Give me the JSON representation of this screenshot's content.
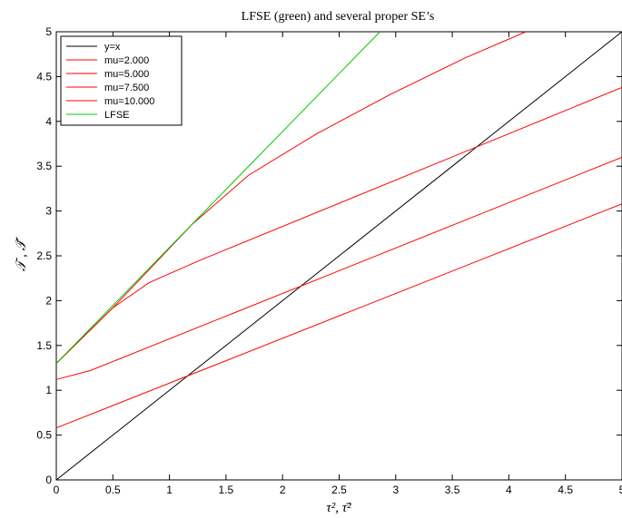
{
  "chart_data": {
    "type": "line",
    "title": "LFSE (green) and several proper SE’s",
    "xlabel": "τ², τ̄²",
    "ylabel": "𝒯 , 𝒯̄",
    "xlim": [
      0,
      5
    ],
    "ylim": [
      0,
      5
    ],
    "xticks": [
      0,
      0.5,
      1,
      1.5,
      2,
      2.5,
      3,
      3.5,
      4,
      4.5,
      5
    ],
    "yticks": [
      0,
      0.5,
      1,
      1.5,
      2,
      2.5,
      3,
      3.5,
      4,
      4.5,
      5
    ],
    "xtick_labels": [
      "0",
      "0.5",
      "1",
      "1.5",
      "2",
      "2.5",
      "3",
      "3.5",
      "4",
      "4.5",
      "5"
    ],
    "ytick_labels": [
      "0",
      "0.5",
      "1",
      "1.5",
      "2",
      "2.5",
      "3",
      "3.5",
      "4",
      "4.5",
      "5"
    ],
    "grid": false,
    "legend_position": "top-left",
    "series": [
      {
        "name": "y=x",
        "color": "#000000",
        "x": [
          0,
          5
        ],
        "y": [
          0,
          5
        ]
      },
      {
        "name": "mu=2.000",
        "color": "#ff0000",
        "x": [
          0,
          0.5,
          1.2,
          1.7,
          2.3,
          2.95,
          3.6,
          4.15
        ],
        "y": [
          1.3,
          1.92,
          2.85,
          3.4,
          3.86,
          4.3,
          4.7,
          5.0
        ]
      },
      {
        "name": "mu=5.000",
        "color": "#ff0000",
        "x": [
          0,
          0.5,
          0.82,
          1.25,
          5.0
        ],
        "y": [
          1.3,
          1.92,
          2.2,
          2.44,
          4.38
        ]
      },
      {
        "name": "mu=7.500",
        "color": "#ff0000",
        "x": [
          0,
          0.3,
          5.0
        ],
        "y": [
          1.12,
          1.22,
          3.6
        ]
      },
      {
        "name": "mu=10.000",
        "color": "#ff0000",
        "x": [
          0,
          5.0
        ],
        "y": [
          0.58,
          3.08
        ]
      },
      {
        "name": "LFSE",
        "color": "#00cc00",
        "x": [
          0,
          2.86
        ],
        "y": [
          1.3,
          5.0
        ]
      }
    ]
  }
}
